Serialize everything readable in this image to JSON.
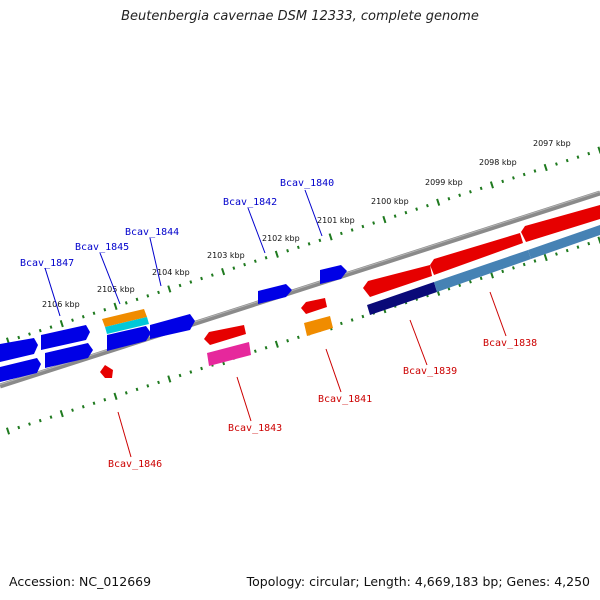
{
  "title": "Beutenbergia cavernae DSM 12333, complete genome",
  "footer": {
    "accession": "Accession: NC_012669",
    "topology": "Topology: circular; Length: 4,669,183 bp; Genes: 4,250"
  },
  "colors": {
    "backbone": "#7a7a7a",
    "tick": "#1f7a1f",
    "forward_gene": "#0000e6",
    "reverse_gene": "#e60000",
    "forward_label": "#0000cc",
    "reverse_label": "#cc0000",
    "orange": "#f08c00",
    "cyan": "#00c8d8",
    "magenta": "#e6289c",
    "navy": "#0a0a78",
    "steelblue": "#4682b4"
  },
  "kbp_labels": [
    "2097 kbp",
    "2098 kbp",
    "2099 kbp",
    "2100 kbp",
    "2101 kbp",
    "2102 kbp",
    "2103 kbp",
    "2104 kbp",
    "2105 kbp",
    "2106 kbp"
  ],
  "gene_labels": {
    "forward": [
      "Bcav_1840",
      "Bcav_1842",
      "Bcav_1844",
      "Bcav_1845",
      "Bcav_1847"
    ],
    "reverse": [
      "Bcav_1838",
      "Bcav_1839",
      "Bcav_1841",
      "Bcav_1843",
      "Bcav_1846"
    ]
  }
}
